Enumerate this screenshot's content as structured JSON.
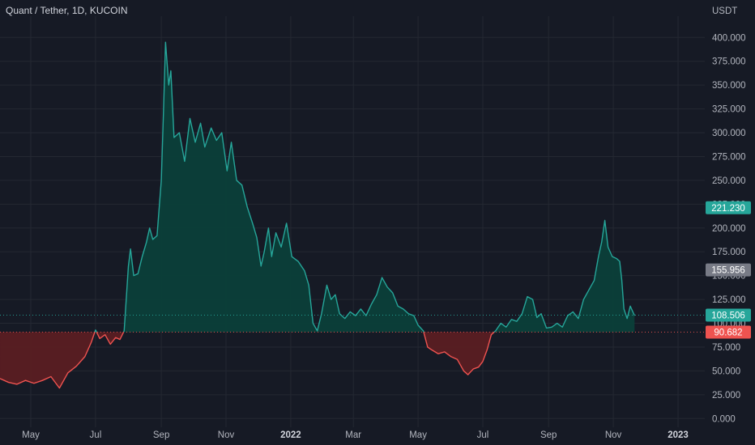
{
  "header": {
    "title": "Quant / Tether, 1D, KUCOIN"
  },
  "chart_data": {
    "type": "area",
    "title": "Quant / Tether, 1D, KUCOIN",
    "currency": "USDT",
    "baseline": 90.682,
    "ylim": [
      0,
      400
    ],
    "y_ticks": [
      "0.000",
      "25.000",
      "50.000",
      "75.000",
      "100.000",
      "125.000",
      "150.000",
      "175.000",
      "200.000",
      "225.000",
      "250.000",
      "275.000",
      "300.000",
      "325.000",
      "350.000",
      "375.000",
      "400.000"
    ],
    "x_ticks": [
      {
        "label": "May",
        "date": "2021-05-01",
        "bold": false
      },
      {
        "label": "Jul",
        "date": "2021-07-01",
        "bold": false
      },
      {
        "label": "Sep",
        "date": "2021-09-01",
        "bold": false
      },
      {
        "label": "Nov",
        "date": "2021-11-01",
        "bold": false
      },
      {
        "label": "2022",
        "date": "2022-01-01",
        "bold": true
      },
      {
        "label": "Mar",
        "date": "2022-03-01",
        "bold": false
      },
      {
        "label": "May",
        "date": "2022-05-01",
        "bold": false
      },
      {
        "label": "Jul",
        "date": "2022-07-01",
        "bold": false
      },
      {
        "label": "Sep",
        "date": "2022-09-01",
        "bold": false
      },
      {
        "label": "Nov",
        "date": "2022-11-01",
        "bold": false
      },
      {
        "label": "2023",
        "date": "2023-01-01",
        "bold": true
      }
    ],
    "price_labels": [
      {
        "value": 221.23,
        "text": "221.230",
        "color": "#26a69a",
        "line": false
      },
      {
        "value": 155.956,
        "text": "155.956",
        "color": "#787b86",
        "line": false
      },
      {
        "value": 108.506,
        "text": "108.506",
        "color": "#26a69a",
        "line": true
      },
      {
        "value": 90.682,
        "text": "90.682",
        "color": "#ef5350",
        "line": true
      }
    ],
    "series": [
      {
        "values": [
          [
            "2021-04-02",
            42
          ],
          [
            "2021-04-10",
            38
          ],
          [
            "2021-04-18",
            36
          ],
          [
            "2021-04-26",
            40
          ],
          [
            "2021-05-04",
            37
          ],
          [
            "2021-05-12",
            40
          ],
          [
            "2021-05-20",
            44
          ],
          [
            "2021-05-28",
            32
          ],
          [
            "2021-06-05",
            48
          ],
          [
            "2021-06-13",
            55
          ],
          [
            "2021-06-21",
            65
          ],
          [
            "2021-06-27",
            80
          ],
          [
            "2021-07-01",
            93
          ],
          [
            "2021-07-05",
            84
          ],
          [
            "2021-07-10",
            88
          ],
          [
            "2021-07-15",
            78
          ],
          [
            "2021-07-20",
            85
          ],
          [
            "2021-07-24",
            83
          ],
          [
            "2021-07-28",
            92
          ],
          [
            "2021-08-01",
            160
          ],
          [
            "2021-08-03",
            178
          ],
          [
            "2021-08-06",
            150
          ],
          [
            "2021-08-10",
            152
          ],
          [
            "2021-08-14",
            170
          ],
          [
            "2021-08-18",
            185
          ],
          [
            "2021-08-21",
            200
          ],
          [
            "2021-08-24",
            188
          ],
          [
            "2021-08-28",
            192
          ],
          [
            "2021-09-01",
            250
          ],
          [
            "2021-09-03",
            320
          ],
          [
            "2021-09-05",
            395
          ],
          [
            "2021-09-08",
            350
          ],
          [
            "2021-09-10",
            365
          ],
          [
            "2021-09-13",
            295
          ],
          [
            "2021-09-18",
            300
          ],
          [
            "2021-09-23",
            270
          ],
          [
            "2021-09-28",
            315
          ],
          [
            "2021-10-03",
            290
          ],
          [
            "2021-10-08",
            310
          ],
          [
            "2021-10-12",
            285
          ],
          [
            "2021-10-18",
            305
          ],
          [
            "2021-10-23",
            292
          ],
          [
            "2021-10-28",
            300
          ],
          [
            "2021-11-02",
            260
          ],
          [
            "2021-11-06",
            290
          ],
          [
            "2021-11-11",
            250
          ],
          [
            "2021-11-16",
            245
          ],
          [
            "2021-11-21",
            222
          ],
          [
            "2021-11-26",
            205
          ],
          [
            "2021-11-30",
            190
          ],
          [
            "2021-12-04",
            160
          ],
          [
            "2021-12-07",
            175
          ],
          [
            "2021-12-11",
            200
          ],
          [
            "2021-12-14",
            170
          ],
          [
            "2021-12-18",
            195
          ],
          [
            "2021-12-23",
            180
          ],
          [
            "2021-12-28",
            205
          ],
          [
            "2022-01-02",
            170
          ],
          [
            "2022-01-08",
            165
          ],
          [
            "2022-01-14",
            155
          ],
          [
            "2022-01-18",
            140
          ],
          [
            "2022-01-22",
            100
          ],
          [
            "2022-01-26",
            92
          ],
          [
            "2022-01-30",
            110
          ],
          [
            "2022-02-04",
            140
          ],
          [
            "2022-02-08",
            125
          ],
          [
            "2022-02-12",
            130
          ],
          [
            "2022-02-16",
            110
          ],
          [
            "2022-02-21",
            105
          ],
          [
            "2022-02-26",
            112
          ],
          [
            "2022-03-03",
            108
          ],
          [
            "2022-03-08",
            115
          ],
          [
            "2022-03-13",
            108
          ],
          [
            "2022-03-18",
            120
          ],
          [
            "2022-03-23",
            130
          ],
          [
            "2022-03-28",
            148
          ],
          [
            "2022-04-02",
            138
          ],
          [
            "2022-04-07",
            132
          ],
          [
            "2022-04-12",
            118
          ],
          [
            "2022-04-17",
            115
          ],
          [
            "2022-04-22",
            110
          ],
          [
            "2022-04-27",
            108
          ],
          [
            "2022-05-01",
            98
          ],
          [
            "2022-05-06",
            92
          ],
          [
            "2022-05-10",
            75
          ],
          [
            "2022-05-14",
            72
          ],
          [
            "2022-05-20",
            68
          ],
          [
            "2022-05-26",
            70
          ],
          [
            "2022-06-01",
            65
          ],
          [
            "2022-06-07",
            62
          ],
          [
            "2022-06-13",
            50
          ],
          [
            "2022-06-17",
            46
          ],
          [
            "2022-06-22",
            52
          ],
          [
            "2022-06-27",
            54
          ],
          [
            "2022-07-01",
            60
          ],
          [
            "2022-07-05",
            72
          ],
          [
            "2022-07-09",
            88
          ],
          [
            "2022-07-13",
            92
          ],
          [
            "2022-07-18",
            100
          ],
          [
            "2022-07-23",
            96
          ],
          [
            "2022-07-28",
            104
          ],
          [
            "2022-08-02",
            102
          ],
          [
            "2022-08-07",
            110
          ],
          [
            "2022-08-12",
            128
          ],
          [
            "2022-08-17",
            125
          ],
          [
            "2022-08-21",
            106
          ],
          [
            "2022-08-25",
            110
          ],
          [
            "2022-08-30",
            95
          ],
          [
            "2022-09-04",
            96
          ],
          [
            "2022-09-09",
            100
          ],
          [
            "2022-09-14",
            96
          ],
          [
            "2022-09-19",
            108
          ],
          [
            "2022-09-24",
            112
          ],
          [
            "2022-09-29",
            105
          ],
          [
            "2022-10-04",
            125
          ],
          [
            "2022-10-09",
            135
          ],
          [
            "2022-10-14",
            145
          ],
          [
            "2022-10-18",
            170
          ],
          [
            "2022-10-21",
            185
          ],
          [
            "2022-10-24",
            208
          ],
          [
            "2022-10-27",
            180
          ],
          [
            "2022-10-31",
            170
          ],
          [
            "2022-11-04",
            168
          ],
          [
            "2022-11-07",
            165
          ],
          [
            "2022-11-09",
            145
          ],
          [
            "2022-11-11",
            115
          ],
          [
            "2022-11-14",
            105
          ],
          [
            "2022-11-17",
            118
          ],
          [
            "2022-11-21",
            108
          ]
        ]
      }
    ]
  },
  "colors": {
    "background": "#161a25",
    "grid": "#242832",
    "above_line": "#26a69a",
    "below_line": "#ef5350",
    "above_fill": "#0b3f39",
    "below_fill": "#5a1d22",
    "axis_text": "#b2b5be"
  }
}
